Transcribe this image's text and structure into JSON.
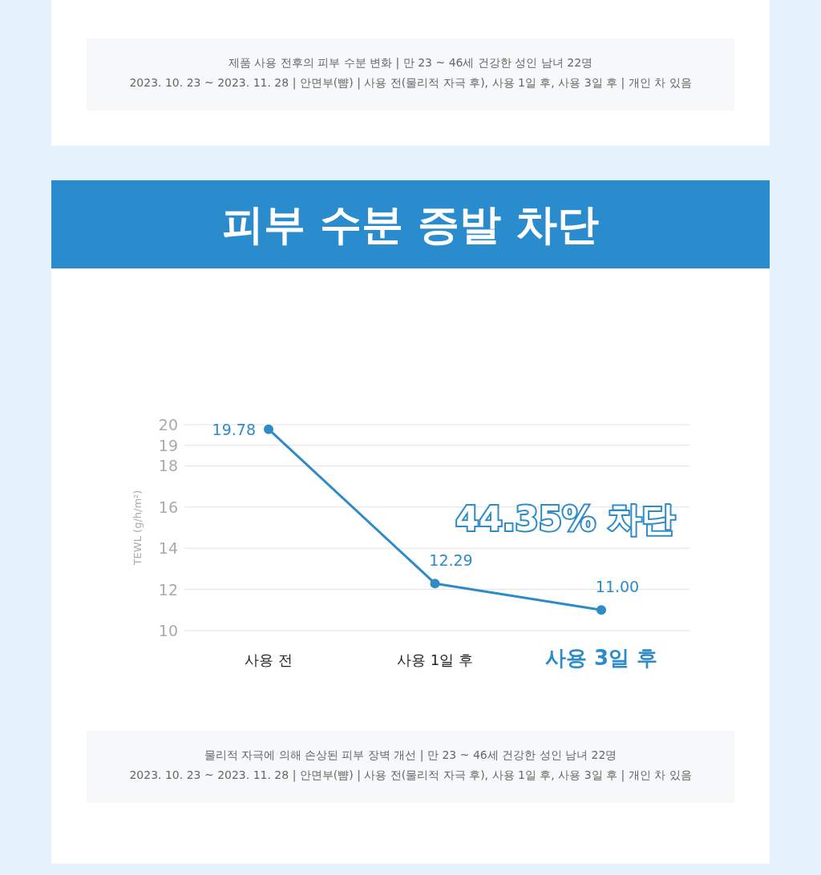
{
  "chart_data": {
    "type": "line",
    "title": "피부 수분 증발 차단",
    "ylabel": "TEWL (g/h/m²)",
    "categories": [
      "사용 전",
      "사용 1일 후",
      "사용 3일 후"
    ],
    "series": [
      {
        "color": "#2e8bc7",
        "values": [
          19.78,
          12.29,
          11.0
        ],
        "value_labels": [
          "19.78",
          "12.29",
          "11.00"
        ]
      }
    ],
    "ylim": [
      10,
      20
    ],
    "yticks": [
      10,
      12,
      14,
      16,
      18,
      19,
      20
    ],
    "grid": "y",
    "marker": "circle",
    "line_style": "solid",
    "annotations": [
      "제품 사용 전후의 피부 수분 변화 | 만 23 ~ 46세 건강한 성인 남녀 22명\n2023. 10. 23 ~ 2023. 11. 28 | 안면부(뺨) | 사용 전(물리적 자극 후), 사용 1일 후, 사용 3일 후 | 개인 차 있음",
      "44.35% 차단",
      "물리적 자극에 의해 손상된 피부 장벽 개선 | 만 23 ~ 46세 건강한 성인 남녀 22명\n2023. 10. 23 ~ 2023. 11. 28 | 안면부(뺨) | 사용 전(물리적 자극 후), 사용 1일 후, 사용 3일 후 | 개인 차 있음"
    ]
  }
}
